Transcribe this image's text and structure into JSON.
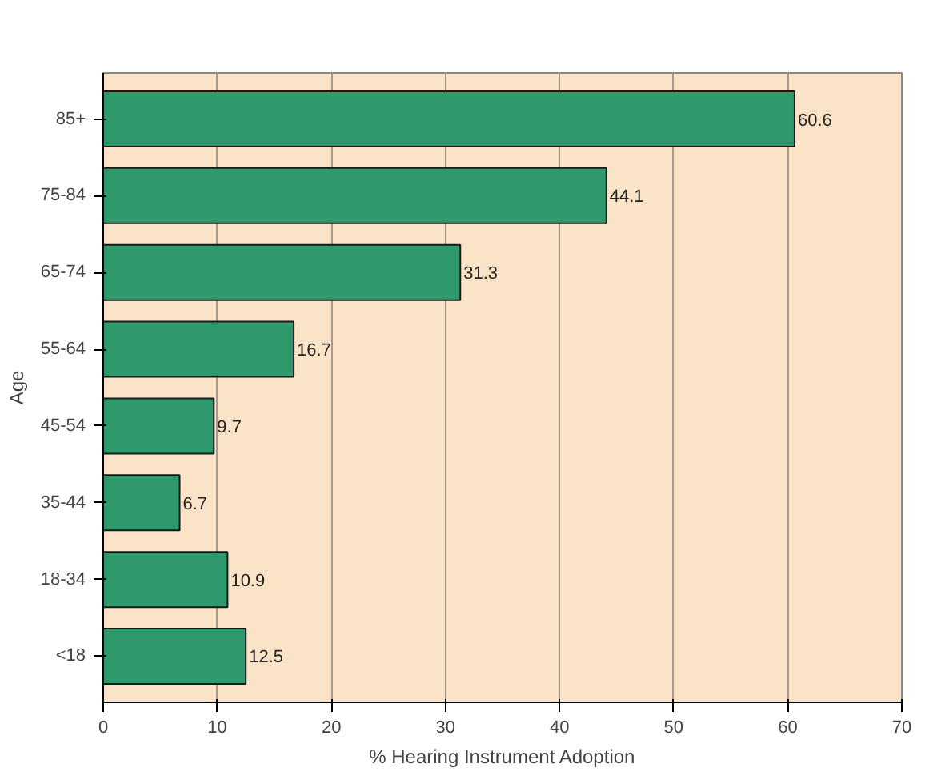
{
  "chart_data": {
    "type": "bar",
    "orientation": "horizontal",
    "xlabel": "% Hearing Instrument Adoption",
    "ylabel": "Age",
    "categories": [
      "85+",
      "75-84",
      "65-74",
      "55-64",
      "45-54",
      "35-44",
      "18-34",
      "<18"
    ],
    "values": [
      60.6,
      44.1,
      31.3,
      16.7,
      9.7,
      6.7,
      10.9,
      12.5
    ],
    "color": "#2e9a6c",
    "data_labels": true,
    "grid": "x",
    "xlim": [
      0,
      70
    ],
    "xticks": [
      0,
      10,
      20,
      30,
      40,
      50,
      60,
      70
    ]
  }
}
